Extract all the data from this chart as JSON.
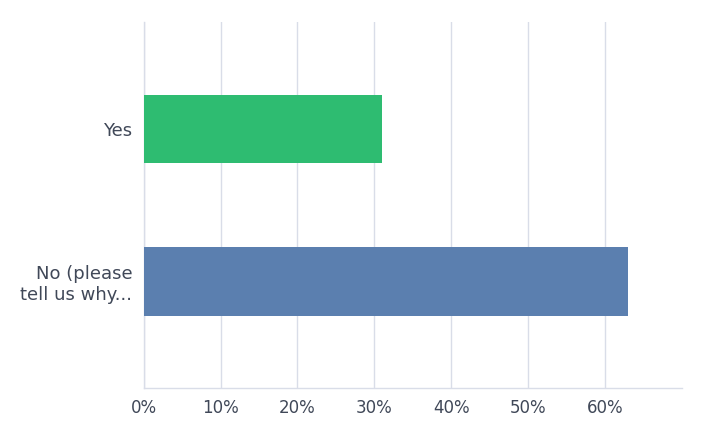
{
  "categories": [
    "No (please\ntell us why...",
    "Yes"
  ],
  "values": [
    63,
    31
  ],
  "bar_colors": [
    "#5b7faf",
    "#2ebc71"
  ],
  "background_color": "#ffffff",
  "xlim": [
    0,
    70
  ],
  "xticks": [
    0,
    10,
    20,
    30,
    40,
    50,
    60
  ],
  "xtick_labels": [
    "0%",
    "10%",
    "20%",
    "30%",
    "40%",
    "50%",
    "60%"
  ],
  "label_fontsize": 13,
  "tick_fontsize": 12,
  "label_color": "#404858",
  "bar_height": 0.45,
  "grid_color": "#d9dde8",
  "ylim": [
    -0.7,
    1.7
  ]
}
